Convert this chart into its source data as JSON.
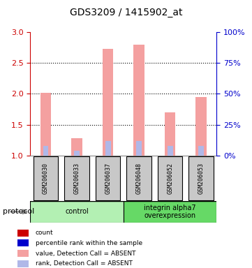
{
  "title": "GDS3209 / 1415902_at",
  "samples": [
    "GSM206030",
    "GSM206033",
    "GSM206037",
    "GSM206048",
    "GSM206052",
    "GSM206053"
  ],
  "values": [
    2.02,
    1.28,
    2.73,
    2.8,
    1.7,
    1.95
  ],
  "ranks": [
    0.08,
    0.04,
    0.12,
    0.12,
    0.08,
    0.08
  ],
  "ylim_left": [
    1.0,
    3.0
  ],
  "ylim_right": [
    0,
    100
  ],
  "yticks_left": [
    1.0,
    1.5,
    2.0,
    2.5,
    3.0
  ],
  "yticks_right": [
    0,
    25,
    50,
    75,
    100
  ],
  "groups": [
    {
      "label": "control",
      "samples": [
        0,
        1,
        2
      ],
      "color": "#b3f0b3"
    },
    {
      "label": "integrin alpha7\noverexpression",
      "samples": [
        3,
        4,
        5
      ],
      "color": "#66d966"
    }
  ],
  "bar_color_value": "#f4a0a0",
  "bar_color_rank": "#b0b8e8",
  "bar_width": 0.35,
  "bg_color": "#ffffff",
  "grid_color": "#000000",
  "left_axis_color": "#cc0000",
  "right_axis_color": "#0000cc",
  "sample_box_color": "#c8c8c8",
  "legend_items": [
    {
      "color": "#cc0000",
      "marker": "s",
      "label": "count"
    },
    {
      "color": "#0000cc",
      "marker": "s",
      "label": "percentile rank within the sample"
    },
    {
      "color": "#f4a0a0",
      "marker": "s",
      "label": "value, Detection Call = ABSENT"
    },
    {
      "color": "#b0b8e8",
      "marker": "s",
      "label": "rank, Detection Call = ABSENT"
    }
  ]
}
